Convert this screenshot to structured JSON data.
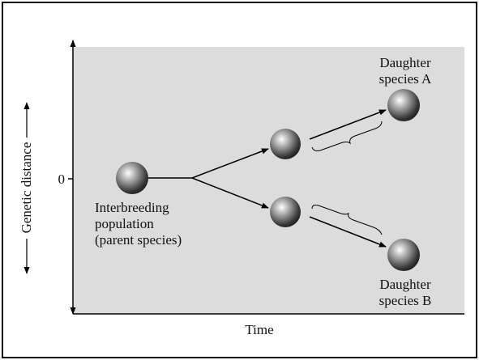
{
  "y_axis_label": "Genetic distance",
  "zero_label": "0",
  "x_axis_label": "Time",
  "parent_label": [
    "Interbreeding",
    "population",
    "(parent species)"
  ],
  "daughter_a_label": [
    "Daughter",
    "species A"
  ],
  "daughter_b_label": [
    "Daughter",
    "species B"
  ]
}
